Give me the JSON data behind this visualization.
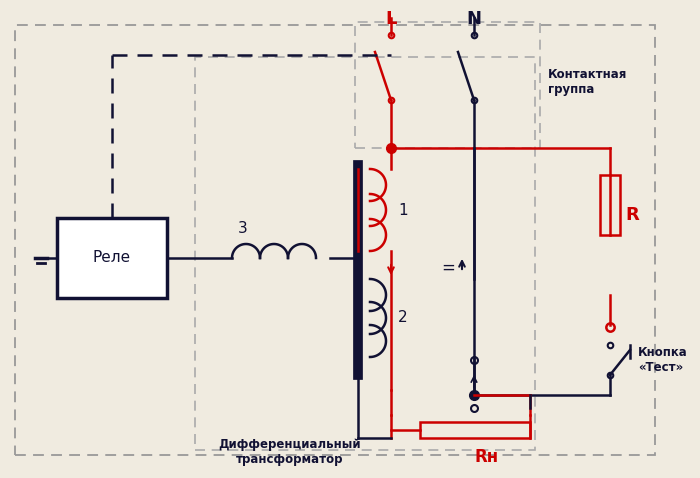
{
  "bg_color": "#f0ebe0",
  "red": "#cc0000",
  "black": "#111133",
  "darkgray": "#666666",
  "label_L": "L",
  "label_N": "N",
  "label_relay": "Реле",
  "label_3": "3",
  "label_1": "1",
  "label_2": "2",
  "label_R": "R",
  "label_Rн": "Rн",
  "label_kontakt": "Контактная\nгруппа",
  "label_diftr": "Дифференциальный\nтрансформатор",
  "label_knopka": "Кнопка\n«Тест»"
}
